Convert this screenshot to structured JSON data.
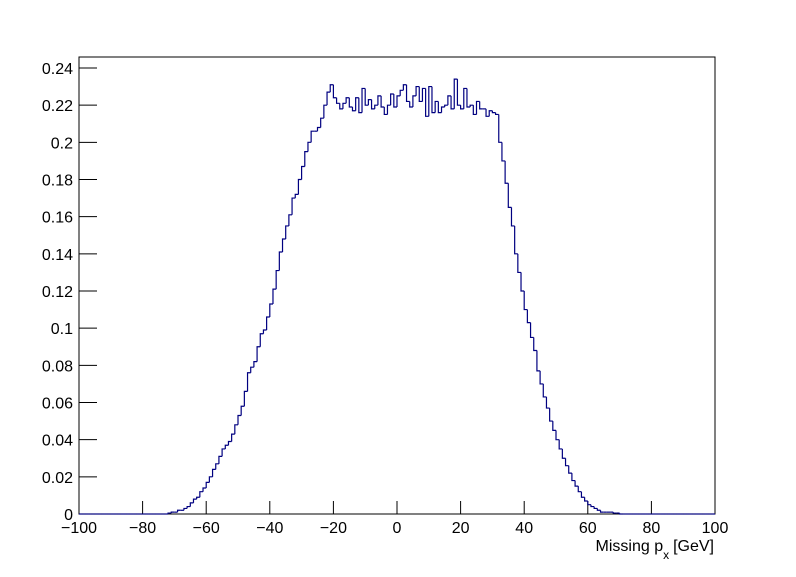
{
  "chart_data": {
    "type": "histogram",
    "x_label": {
      "text": "Missing p",
      "subscript": "x",
      "unit": "[GeV]"
    },
    "color": "#000080",
    "bins": [
      -100,
      -99,
      -98,
      -97,
      -96,
      -95,
      -94,
      -93,
      -92,
      -91,
      -90,
      -89,
      -88,
      -87,
      -86,
      -85,
      -84,
      -83,
      -82,
      -81,
      -80,
      -79,
      -78,
      -77,
      -76,
      -75,
      -74,
      -73,
      -72,
      -71,
      -70,
      -69,
      -68,
      -67,
      -66,
      -65,
      -64,
      -63,
      -62,
      -61,
      -60,
      -59,
      -58,
      -57,
      -56,
      -55,
      -54,
      -53,
      -52,
      -51,
      -50,
      -49,
      -48,
      -47,
      -46,
      -45,
      -44,
      -43,
      -42,
      -41,
      -40,
      -39,
      -38,
      -37,
      -36,
      -35,
      -34,
      -33,
      -32,
      -31,
      -30,
      -29,
      -28,
      -27,
      -26,
      -25,
      -24,
      -23,
      -22,
      -21,
      -20,
      -19,
      -18,
      -17,
      -16,
      -15,
      -14,
      -13,
      -12,
      -11,
      -10,
      -9,
      -8,
      -7,
      -6,
      -5,
      -4,
      -3,
      -2,
      -1,
      0,
      1,
      2,
      3,
      4,
      5,
      6,
      7,
      8,
      9,
      10,
      11,
      12,
      13,
      14,
      15,
      16,
      17,
      18,
      19,
      20,
      21,
      22,
      23,
      24,
      25,
      26,
      27,
      28,
      29,
      30,
      31,
      32,
      33,
      34,
      35,
      36,
      37,
      38,
      39,
      40,
      41,
      42,
      43,
      44,
      45,
      46,
      47,
      48,
      49,
      50,
      51,
      52,
      53,
      54,
      55,
      56,
      57,
      58,
      59,
      60,
      61,
      62,
      63,
      64,
      65,
      66,
      67,
      68,
      69,
      70,
      71,
      72,
      73,
      74,
      75,
      76,
      77,
      78,
      79,
      80,
      81,
      82,
      83,
      84,
      85,
      86,
      87,
      88,
      89,
      90,
      91,
      92,
      93,
      94,
      95,
      96,
      97,
      98,
      99,
      100
    ],
    "values": [
      0,
      0,
      0,
      0,
      0,
      0,
      0,
      0,
      0,
      0,
      0,
      0,
      0,
      0,
      0,
      0,
      0,
      0,
      0,
      0,
      0,
      0,
      0,
      0,
      0,
      0,
      0,
      0,
      0.0005,
      0.001,
      0.001,
      0.002,
      0.002,
      0.003,
      0.004,
      0.006,
      0.008,
      0.009,
      0.012,
      0.014,
      0.017,
      0.02,
      0.024,
      0.027,
      0.031,
      0.035,
      0.037,
      0.039,
      0.043,
      0.048,
      0.053,
      0.058,
      0.066,
      0.076,
      0.079,
      0.082,
      0.09,
      0.097,
      0.099,
      0.106,
      0.113,
      0.121,
      0.131,
      0.141,
      0.148,
      0.155,
      0.161,
      0.17,
      0.172,
      0.18,
      0.187,
      0.195,
      0.2,
      0.206,
      0.206,
      0.208,
      0.213,
      0.22,
      0.227,
      0.231,
      0.224,
      0.221,
      0.218,
      0.221,
      0.224,
      0.219,
      0.217,
      0.224,
      0.216,
      0.229,
      0.22,
      0.223,
      0.218,
      0.22,
      0.225,
      0.219,
      0.215,
      0.22,
      0.226,
      0.219,
      0.225,
      0.228,
      0.231,
      0.222,
      0.219,
      0.225,
      0.23,
      0.222,
      0.229,
      0.214,
      0.23,
      0.216,
      0.222,
      0.216,
      0.219,
      0.22,
      0.225,
      0.218,
      0.234,
      0.22,
      0.218,
      0.229,
      0.219,
      0.22,
      0.215,
      0.222,
      0.218,
      0.218,
      0.214,
      0.217,
      0.216,
      0.215,
      0.2,
      0.19,
      0.178,
      0.165,
      0.155,
      0.14,
      0.13,
      0.12,
      0.11,
      0.103,
      0.095,
      0.088,
      0.077,
      0.07,
      0.063,
      0.057,
      0.05,
      0.045,
      0.04,
      0.035,
      0.03,
      0.026,
      0.022,
      0.018,
      0.015,
      0.012,
      0.009,
      0.007,
      0.005,
      0.004,
      0.003,
      0.002,
      0.001,
      0.001,
      0.001,
      0.001,
      0.0005,
      0.0005,
      0,
      0,
      0,
      0,
      0,
      0,
      0,
      0,
      0,
      0,
      0,
      0,
      0,
      0,
      0,
      0,
      0,
      0,
      0,
      0,
      0,
      0,
      0,
      0,
      0,
      0,
      0,
      0,
      0,
      0
    ],
    "xlim": [
      -100,
      100
    ],
    "xticks": [
      {
        "value": -100,
        "label": "−100"
      },
      {
        "value": -80,
        "label": "−80"
      },
      {
        "value": -60,
        "label": "−60"
      },
      {
        "value": -40,
        "label": "−40"
      },
      {
        "value": -20,
        "label": "−20"
      },
      0,
      20,
      40,
      60,
      80,
      100
    ],
    "ylim": [
      0,
      0.24
    ],
    "yticks": [
      0,
      0.02,
      0.04,
      0.06,
      0.08,
      0.1,
      0.12,
      0.14,
      0.16,
      0.18,
      0.2,
      0.22,
      0.24
    ]
  }
}
